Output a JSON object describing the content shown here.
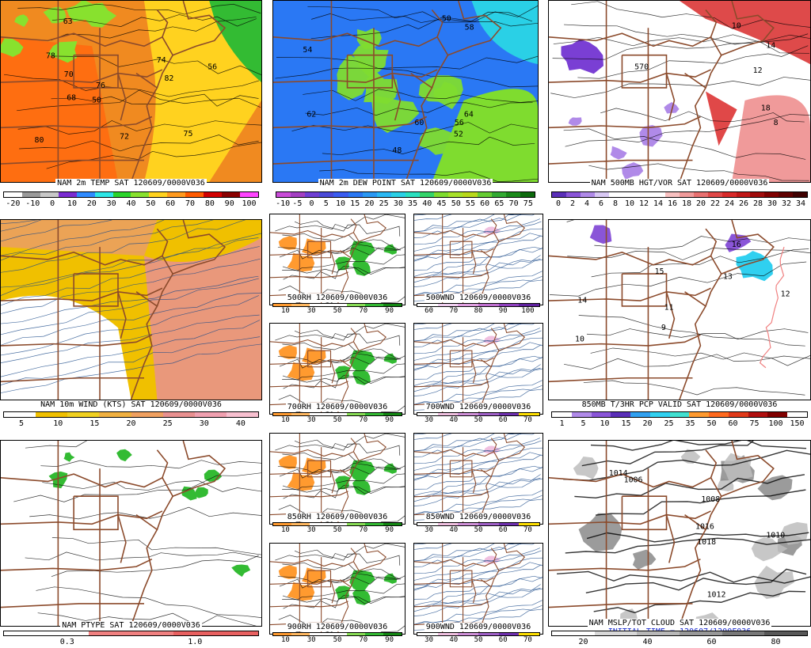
{
  "panels": [
    {
      "id": "temp2m",
      "title": "NAM 2m TEMP SAT 120609/0000V036",
      "scale_labels": [
        "-20",
        "-10",
        "0",
        "10",
        "20",
        "30",
        "40",
        "50",
        "60",
        "70",
        "80",
        "90",
        "100"
      ],
      "scale_colors": [
        "#ffffff",
        "#9a9a9a",
        "#c8c8c8",
        "#7a2bd1",
        "#2f8bff",
        "#2ee6e6",
        "#2bd42b",
        "#88e12e",
        "#ffd21f",
        "#ff9a1f",
        "#ff5a00",
        "#d10000",
        "#8a0000",
        "#ff44ff"
      ],
      "contour_labels": [
        "56",
        "72",
        "76",
        "78",
        "80",
        "82",
        "75",
        "63",
        "50",
        "70",
        "68",
        "74"
      ]
    },
    {
      "id": "dewpoint2m",
      "title": "NAM 2m DEW POINT SAT 120609/0000V036",
      "scale_labels": [
        "-10",
        "-5",
        "0",
        "5",
        "10",
        "15",
        "20",
        "25",
        "30",
        "35",
        "40",
        "45",
        "50",
        "55",
        "60",
        "65",
        "70",
        "75"
      ],
      "scale_colors": [
        "#c94cd8",
        "#a33fc2",
        "#6f3fd4",
        "#4a4ad8",
        "#3a5cf0",
        "#2a78f4",
        "#2a98f4",
        "#2ab8f4",
        "#2ad0e6",
        "#2ae0c0",
        "#34d46a",
        "#7fdc2f",
        "#a8e12a",
        "#b8d81a",
        "#66cc33",
        "#33aa33",
        "#1b8a1b",
        "#0d6a0d"
      ],
      "contour_labels": [
        "54",
        "56",
        "58",
        "60",
        "62",
        "50",
        "52",
        "48",
        "64"
      ]
    },
    {
      "id": "vort500",
      "title": "NAM 500MB HGT/VOR SAT 120609/0000V036",
      "scale_labels": [
        "0",
        "2",
        "4",
        "6",
        "8",
        "10",
        "12",
        "14",
        "16",
        "18",
        "20",
        "22",
        "24",
        "26",
        "28",
        "30",
        "32",
        "34"
      ],
      "scale_colors": [
        "#5a2fb8",
        "#8a55d8",
        "#b08ae8",
        "#d8c8f4",
        "#ffffff",
        "#ffffff",
        "#ffffff",
        "#ffffff",
        "#f8c0c0",
        "#f09a9a",
        "#e87070",
        "#e04848",
        "#d82a2a",
        "#c01818",
        "#a00c0c",
        "#800000",
        "#600000",
        "#400000"
      ],
      "contour_labels": [
        "10",
        "8",
        "14",
        "570",
        "18",
        "12"
      ]
    },
    {
      "id": "wind10m",
      "title": "NAM 10m WIND (KTS) SAT 120609/0000V036",
      "scale_labels": [
        "5",
        "10",
        "15",
        "20",
        "25",
        "30",
        "40"
      ],
      "scale_colors": [
        "#ffffff",
        "#f0c000",
        "#f0d020",
        "#f0b040",
        "#f0a060",
        "#e89090",
        "#f0a0b0",
        "#f8c0d0"
      ]
    },
    {
      "id": "rh500",
      "title": "500RH 120609/0000V036",
      "scale_labels": [
        "10",
        "30",
        "50",
        "70",
        "90"
      ],
      "scale_colors": [
        "#ff9a2f",
        "#ffb860",
        "#ffffff",
        "#ffffff",
        "#88dd55",
        "#33bb33",
        "#138813"
      ]
    },
    {
      "id": "wnd500",
      "title": "500WND 120609/0000V036",
      "scale_labels": [
        "60",
        "70",
        "80",
        "90",
        "100"
      ],
      "scale_colors": [
        "#ffffff",
        "#f0d0f0",
        "#e0a0e0",
        "#c070d0",
        "#9040c0",
        "#6020a0"
      ]
    },
    {
      "id": "rh700",
      "title": "700RH 120609/0000V036",
      "scale_labels": [
        "10",
        "30",
        "50",
        "70",
        "90"
      ],
      "scale_colors": [
        "#ff9a2f",
        "#ffb860",
        "#ffffff",
        "#ffffff",
        "#88dd55",
        "#33bb33",
        "#138813"
      ]
    },
    {
      "id": "wnd700",
      "title": "700WND 120609/0000V036",
      "scale_labels": [
        "30",
        "40",
        "50",
        "60",
        "70"
      ],
      "scale_colors": [
        "#ffffff",
        "#f0c0e0",
        "#d090d8",
        "#a060c8",
        "#7030b0",
        "#ffe000"
      ]
    },
    {
      "id": "rh850",
      "title": "850RH 120609/0000V036",
      "scale_labels": [
        "10",
        "30",
        "50",
        "70",
        "90"
      ],
      "scale_colors": [
        "#ff9a2f",
        "#ffb860",
        "#ffffff",
        "#ffffff",
        "#88dd55",
        "#33bb33",
        "#138813"
      ]
    },
    {
      "id": "wnd850",
      "title": "850WND 120609/0000V036",
      "scale_labels": [
        "30",
        "40",
        "50",
        "60",
        "70"
      ],
      "scale_colors": [
        "#ffffff",
        "#f0c0e0",
        "#d090d8",
        "#a060c8",
        "#7030b0",
        "#ffe000"
      ]
    },
    {
      "id": "rh900",
      "title": "900RH 120609/0000V036",
      "scale_labels": [
        "10",
        "30",
        "50",
        "70",
        "90"
      ],
      "scale_colors": [
        "#ff9a2f",
        "#ffb860",
        "#ffffff",
        "#ffffff",
        "#88dd55",
        "#33bb33",
        "#138813"
      ]
    },
    {
      "id": "wnd900",
      "title": "900WND 120609/0000V036",
      "scale_labels": [
        "30",
        "40",
        "50",
        "60",
        "70"
      ],
      "scale_colors": [
        "#ffffff",
        "#f0c0e0",
        "#d090d8",
        "#a060c8",
        "#7030b0",
        "#ffe000"
      ]
    },
    {
      "id": "t850pcp",
      "title": "850MB T/3HR PCP VALID SAT 120609/0000V036",
      "scale_labels": [
        "1",
        "5",
        "10",
        "15",
        "20",
        "25",
        "35",
        "50",
        "60",
        "75",
        "100",
        "150"
      ],
      "scale_colors": [
        "#ffffff",
        "#b08ae8",
        "#8a55d8",
        "#5a2fb8",
        "#30a0f0",
        "#30d0f0",
        "#40e0d0",
        "#ff9a2f",
        "#ff6a1f",
        "#e03a1a",
        "#b01010",
        "#800000",
        "#ffffff"
      ],
      "contour_labels": [
        "15",
        "12",
        "13",
        "14",
        "11",
        "10",
        "9",
        "16"
      ]
    },
    {
      "id": "ptype",
      "title": "NAM PTYPE SAT 120609/0000V036",
      "scale_labels": [
        "0.3",
        "1.0"
      ],
      "scale_colors": [
        "#ffffff",
        "#f08080",
        "#e86060"
      ]
    },
    {
      "id": "mslp",
      "title": "NAM MSLP/TOT CLOUD SAT 120609/0000V036",
      "subtitle": "INITIAL TIME = 120607/1200F036",
      "scale_labels": [
        "20",
        "40",
        "60",
        "80"
      ],
      "scale_colors": [
        "#ffffff",
        "#d8d8d8",
        "#b8b8b8",
        "#989898",
        "#787878",
        "#585858"
      ],
      "contour_labels": [
        "1012",
        "1014",
        "1010",
        "1008",
        "1016",
        "1018",
        "1006"
      ]
    }
  ]
}
